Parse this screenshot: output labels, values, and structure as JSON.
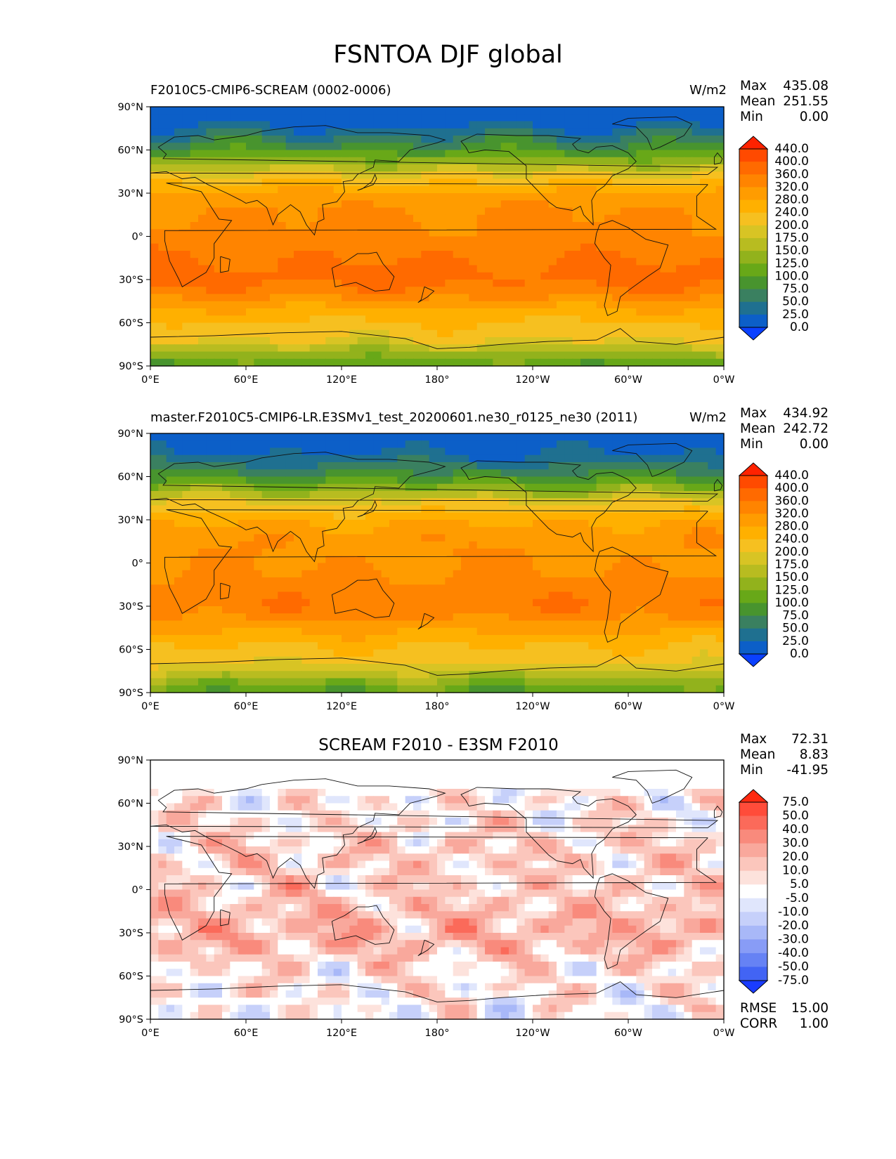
{
  "suptitle": "FSNTOA DJF global",
  "panels": [
    {
      "title_left": "F2010C5-CMIP6-SCREAM (0002-0006)",
      "title_right": "W/m2",
      "title_center": "",
      "stats": [
        {
          "label": "Max",
          "value": "435.08"
        },
        {
          "label": "Mean",
          "value": "251.55"
        },
        {
          "label": "Min",
          "value": "0.00"
        }
      ],
      "cbar_kind": "abs"
    },
    {
      "title_left": "master.F2010C5-CMIP6-LR.E3SMv1_test_20200601.ne30_r0125_ne30 (2011)",
      "title_right": "W/m2",
      "title_center": "",
      "stats": [
        {
          "label": "Max",
          "value": "434.92"
        },
        {
          "label": "Mean",
          "value": "242.72"
        },
        {
          "label": "Min",
          "value": "0.00"
        }
      ],
      "cbar_kind": "abs"
    },
    {
      "title_left": "",
      "title_right": "",
      "title_center": "SCREAM F2010 - E3SM F2010",
      "stats": [
        {
          "label": "Max",
          "value": "72.31"
        },
        {
          "label": "Mean",
          "value": "8.83"
        },
        {
          "label": "Min",
          "value": "-41.95"
        }
      ],
      "extra_stats": [
        {
          "label": "RMSE",
          "value": "15.00"
        },
        {
          "label": "CORR",
          "value": "1.00"
        }
      ],
      "cbar_kind": "diff"
    }
  ],
  "chart_data": {
    "type": "heatmap",
    "variable": "FSNTOA",
    "season": "DJF",
    "units": "W/m2",
    "projection": "PlateCarree",
    "x_ticks": [
      "0°E",
      "60°E",
      "120°E",
      "180°",
      "120°W",
      "60°W",
      "0°W"
    ],
    "y_ticks": [
      "90°N",
      "60°N",
      "30°N",
      "0°",
      "30°S",
      "60°S",
      "90°S"
    ],
    "xlim": [
      0,
      360
    ],
    "ylim": [
      -90,
      90
    ],
    "abs_colorbar": {
      "levels": [
        "440.0",
        "400.0",
        "360.0",
        "320.0",
        "280.0",
        "240.0",
        "200.0",
        "175.0",
        "150.0",
        "125.0",
        "100.0",
        "75.0",
        "50.0",
        "25.0",
        "0.0"
      ],
      "colors": [
        "#ff2200",
        "#ff4a00",
        "#ff6a00",
        "#ff8400",
        "#ff9c00",
        "#ffb000",
        "#f6c020",
        "#d8c424",
        "#b8bc20",
        "#92b21c",
        "#68a818",
        "#48942e",
        "#3a8060",
        "#1f7090",
        "#0c5fc8",
        "#0a40ff"
      ]
    },
    "diff_colorbar": {
      "levels": [
        "75.0",
        "50.0",
        "40.0",
        "30.0",
        "20.0",
        "10.0",
        "5.0",
        "-5.0",
        "-10.0",
        "-20.0",
        "-30.0",
        "-40.0",
        "-50.0",
        "-75.0"
      ],
      "colors": [
        "#ff2a10",
        "#ff4c3a",
        "#fb6a5a",
        "#f98a7c",
        "#f9a89c",
        "#fbc6bc",
        "#fde2dc",
        "#ffffff",
        "#e0e6fc",
        "#c6d0fa",
        "#a8b8f8",
        "#889cf6",
        "#6682f4",
        "#4264f4",
        "#1a3cff"
      ]
    },
    "fields": [
      {
        "name": "F2010C5-CMIP6-SCREAM (0002-0006)",
        "zonal_mean_by_lat": {
          "lat": [
            90,
            80,
            70,
            60,
            50,
            40,
            30,
            20,
            10,
            0,
            -10,
            -20,
            -30,
            -40,
            -50,
            -60,
            -70,
            -80,
            -90
          ],
          "value": [
            0,
            10,
            50,
            90,
            150,
            220,
            285,
            320,
            330,
            330,
            345,
            365,
            370,
            340,
            280,
            235,
            210,
            150,
            100
          ]
        },
        "max": 435.08,
        "mean": 251.55,
        "min": 0.0
      },
      {
        "name": "master.F2010C5-CMIP6-LR.E3SMv1_test_20200601.ne30_r0125_ne30 (2011)",
        "zonal_mean_by_lat": {
          "lat": [
            90,
            80,
            70,
            60,
            50,
            40,
            30,
            20,
            10,
            0,
            -10,
            -20,
            -30,
            -40,
            -50,
            -60,
            -70,
            -80,
            -90
          ],
          "value": [
            0,
            10,
            45,
            85,
            145,
            215,
            270,
            305,
            315,
            315,
            325,
            340,
            350,
            320,
            270,
            230,
            205,
            145,
            100
          ]
        },
        "max": 434.92,
        "mean": 242.72,
        "min": 0.0
      },
      {
        "name": "SCREAM F2010 - E3SM F2010",
        "zonal_mean_by_lat": {
          "lat": [
            90,
            80,
            70,
            60,
            50,
            40,
            30,
            20,
            10,
            0,
            -10,
            -20,
            -30,
            -40,
            -50,
            -60,
            -70,
            -80,
            -90
          ],
          "value": [
            0,
            0,
            2,
            5,
            5,
            8,
            12,
            12,
            10,
            12,
            15,
            20,
            22,
            18,
            10,
            5,
            5,
            3,
            0
          ]
        },
        "max": 72.31,
        "mean": 8.83,
        "min": -41.95,
        "rmse": 15.0,
        "corr": 1.0
      }
    ]
  }
}
